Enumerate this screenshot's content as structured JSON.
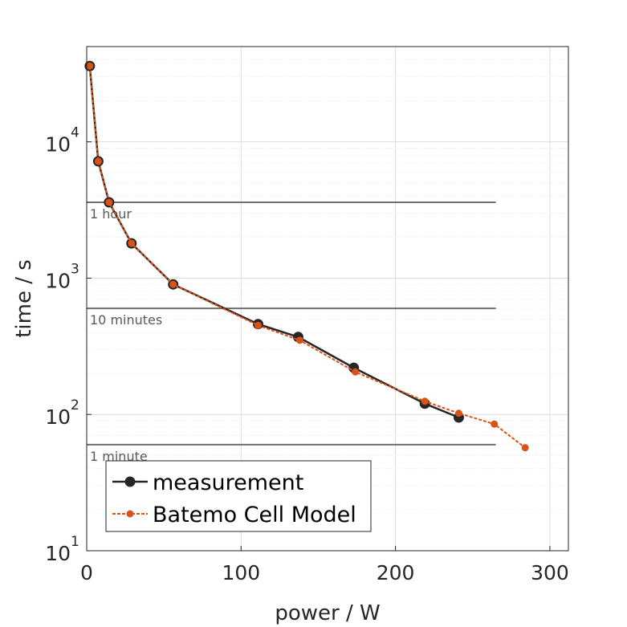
{
  "chart_data": {
    "type": "line",
    "xlabel": "power / W",
    "ylabel": "time / s",
    "xlim": [
      0,
      312
    ],
    "ylim": [
      10,
      50000
    ],
    "yscale": "log",
    "grid": true,
    "legend_position": "bottom-left",
    "x_ticks": [
      {
        "value": 0,
        "label": "0"
      },
      {
        "value": 100,
        "label": "100"
      },
      {
        "value": 200,
        "label": "200"
      },
      {
        "value": 300,
        "label": "300"
      }
    ],
    "y_ticks": [
      {
        "value": 10,
        "base": "10",
        "exp": "1"
      },
      {
        "value": 100,
        "base": "10",
        "exp": "2"
      },
      {
        "value": 1000,
        "base": "10",
        "exp": "3"
      },
      {
        "value": 10000,
        "base": "10",
        "exp": "4"
      }
    ],
    "reference_lines": [
      {
        "label": "1 hour",
        "y": 3600,
        "x_end": 265
      },
      {
        "label": "10 minutes",
        "y": 600,
        "x_end": 265
      },
      {
        "label": "1 minute",
        "y": 60,
        "x_end": 265
      }
    ],
    "series": [
      {
        "name": "measurement",
        "color": "#262626",
        "x": [
          2,
          7.5,
          14.5,
          29,
          56,
          111,
          137,
          173,
          219,
          241
        ],
        "y": [
          36000,
          7200,
          3600,
          1800,
          900,
          460,
          370,
          220,
          120,
          95
        ]
      },
      {
        "name": "Batemo Cell Model",
        "color": "#d95319",
        "x": [
          2,
          7.5,
          14.5,
          29,
          56,
          111,
          138,
          174,
          219,
          241,
          264,
          284
        ],
        "y": [
          36000,
          7200,
          3600,
          1800,
          900,
          450,
          350,
          205,
          125,
          102,
          85,
          57
        ]
      }
    ]
  }
}
